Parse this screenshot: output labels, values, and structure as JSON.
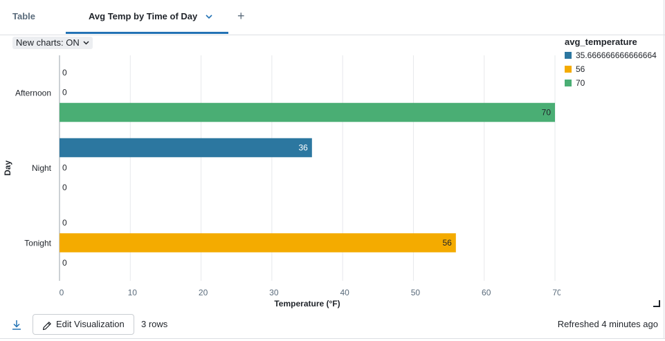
{
  "tabs": {
    "table_label": "Table",
    "active_label": "Avg Temp by Time of Day",
    "add_label": "+"
  },
  "toggle": {
    "label": "New charts: ON"
  },
  "chart_data": {
    "type": "bar",
    "orientation": "horizontal",
    "categories": [
      "Afternoon",
      "Night",
      "Tonight"
    ],
    "series": [
      {
        "name": "35.666666666666664",
        "color": "#2c77a0",
        "values": [
          0,
          35.666666666666664,
          0
        ],
        "labels": [
          "0",
          "36",
          "0"
        ]
      },
      {
        "name": "56",
        "color": "#f4ab00",
        "values": [
          0,
          0,
          56
        ],
        "labels": [
          "0",
          "0",
          "56"
        ]
      },
      {
        "name": "70",
        "color": "#4aae74",
        "values": [
          70,
          0,
          0
        ],
        "labels": [
          "70",
          "0",
          "0"
        ]
      }
    ],
    "xlabel": "Temperature (°F)",
    "ylabel": "Day",
    "xlim": [
      0,
      70
    ],
    "xticks": [
      0,
      10,
      20,
      30,
      40,
      50,
      60,
      70
    ],
    "grid": true,
    "legend_title": "avg_temperature",
    "legend_position": "right"
  },
  "footer": {
    "edit_label": "Edit Visualization",
    "rows_label": "3 rows",
    "refreshed_label": "Refreshed 4 minutes ago"
  }
}
